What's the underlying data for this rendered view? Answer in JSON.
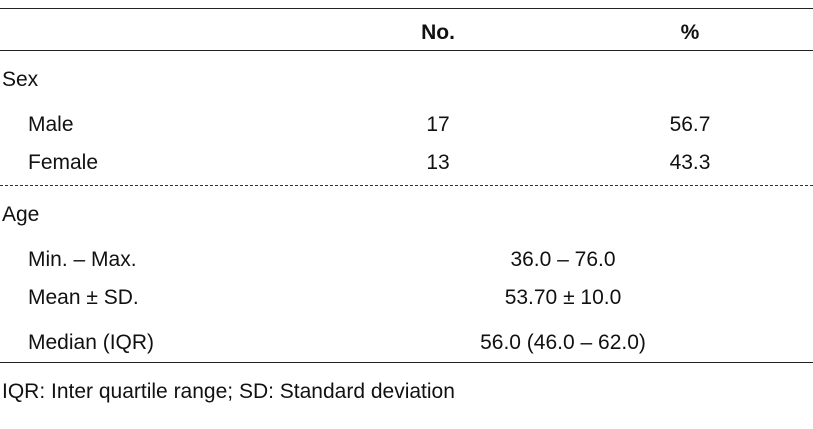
{
  "table": {
    "columns": [
      "No.",
      "%"
    ],
    "sections": [
      {
        "title": "Sex",
        "rows": [
          {
            "label": "Male",
            "no": 17,
            "pct": 56.7
          },
          {
            "label": "Female",
            "no": 13,
            "pct": 43.3
          }
        ]
      },
      {
        "title": "Age",
        "rows": [
          {
            "label": "Min. – Max.",
            "value": "36.0 – 76.0"
          },
          {
            "label": "Mean ± SD.",
            "value": "53.70 ± 10.0"
          },
          {
            "label": "Median (IQR)",
            "value": "56.0 (46.0 – 62.0)"
          }
        ]
      }
    ],
    "footnote": "IQR: Inter quartile range;  SD: Standard deviation"
  }
}
